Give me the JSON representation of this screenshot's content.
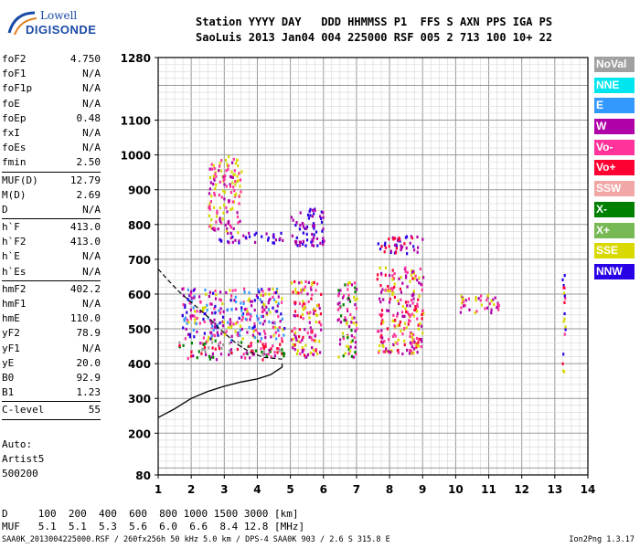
{
  "logo": {
    "line1": "Lowell",
    "line2": "DIGISONDE"
  },
  "header": {
    "line1": "Station YYYY DAY   DDD HHMMSS P1  FFS S AXN PPS IGA PS",
    "line2": "SaoLuis 2013 Jan04 004 225000 RSF 005 2 713 100 10+ 22"
  },
  "params": [
    {
      "label": "foF2",
      "value": "4.750"
    },
    {
      "label": "foF1",
      "value": "N/A"
    },
    {
      "label": "foF1p",
      "value": "N/A"
    },
    {
      "label": "foE",
      "value": "N/A"
    },
    {
      "label": "foEp",
      "value": "0.48"
    },
    {
      "label": "fxI",
      "value": "N/A"
    },
    {
      "label": "foEs",
      "value": "N/A"
    },
    {
      "label": "fmin",
      "value": "2.50",
      "sep": true
    },
    {
      "label": "MUF(D)",
      "value": "12.79"
    },
    {
      "label": "M(D)",
      "value": "2.69"
    },
    {
      "label": "D",
      "value": "N/A",
      "sep": true
    },
    {
      "label": "h`F",
      "value": "413.0"
    },
    {
      "label": "h`F2",
      "value": "413.0"
    },
    {
      "label": "h`E",
      "value": "N/A"
    },
    {
      "label": "h`Es",
      "value": "N/A",
      "sep": true
    },
    {
      "label": "hmF2",
      "value": "402.2"
    },
    {
      "label": "hmF1",
      "value": "N/A"
    },
    {
      "label": "hmE",
      "value": "110.0"
    },
    {
      "label": "yF2",
      "value": "78.9"
    },
    {
      "label": "yF1",
      "value": "N/A"
    },
    {
      "label": "yE",
      "value": "20.0"
    },
    {
      "label": "B0",
      "value": "92.9"
    },
    {
      "label": "B1",
      "value": "1.23",
      "sep": true
    },
    {
      "label": "C-level",
      "value": "55",
      "sep": true
    }
  ],
  "auto": {
    "line1": "Auto:",
    "line2": "Artist5",
    "line3": "500200"
  },
  "legend": [
    {
      "label": "NoVal",
      "color": "#a0a0a0"
    },
    {
      "label": "NNE",
      "color": "#00e5ee"
    },
    {
      "label": "E",
      "color": "#3399ff"
    },
    {
      "label": "W",
      "color": "#b000a8"
    },
    {
      "label": "Vo-",
      "color": "#ff3399"
    },
    {
      "label": "Vo+",
      "color": "#ff0033"
    },
    {
      "label": "SSW",
      "color": "#f2a7a7"
    },
    {
      "label": "X-",
      "color": "#008000"
    },
    {
      "label": "X+",
      "color": "#77b955"
    },
    {
      "label": "SSE",
      "color": "#d9d900"
    },
    {
      "label": "NNW",
      "color": "#2a00e6"
    }
  ],
  "dtable": {
    "line1": "D     100  200  400  600  800 1000 1500 3000 [km]",
    "line2": "MUF   5.1  5.1  5.3  5.6  6.0  6.6  8.4 12.8 [MHz]"
  },
  "footer": {
    "left": "SAA0K_2013004225000.RSF / 260fx256h 50 kHz 5.0 km / DPS-4 SAA0K 903 / 2.6 S 315.8 E",
    "right": "Ion2Png 1.3.17"
  },
  "chart_data": {
    "type": "scatter",
    "xlim": [
      1,
      14
    ],
    "ylim": [
      80,
      1280
    ],
    "x_ticks": [
      "1",
      "2",
      "3",
      "4",
      "5",
      "6",
      "7",
      "8",
      "9",
      "10",
      "11",
      "12",
      "13",
      "14"
    ],
    "y_ticks": [
      "80",
      "200",
      "300",
      "400",
      "500",
      "600",
      "700",
      "800",
      "900",
      "1000",
      "1100",
      "1280"
    ],
    "grid": true,
    "echo_clusters": [
      {
        "x": [
          1.6,
          4.8
        ],
        "y": [
          415,
          470
        ],
        "colors": [
          "#ff3399",
          "#b000a8",
          "#ff0033",
          "#008000",
          "#a0a0a0"
        ]
      },
      {
        "x": [
          1.7,
          4.8
        ],
        "y": [
          470,
          620
        ],
        "colors": [
          "#b000a8",
          "#2a00e6",
          "#ff3399",
          "#d9d900",
          "#3399ff"
        ]
      },
      {
        "x": [
          2.8,
          4.8
        ],
        "y": [
          750,
          780
        ],
        "colors": [
          "#2a00e6",
          "#b000a8"
        ]
      },
      {
        "x": [
          5.0,
          5.9
        ],
        "y": [
          420,
          640
        ],
        "colors": [
          "#d9d900",
          "#b000a8",
          "#ff3399",
          "#ff0033"
        ]
      },
      {
        "x": [
          6.4,
          7.0
        ],
        "y": [
          420,
          640
        ],
        "colors": [
          "#ff3399",
          "#b000a8",
          "#d9d900",
          "#008000"
        ]
      },
      {
        "x": [
          7.6,
          9.0
        ],
        "y": [
          430,
          680
        ],
        "colors": [
          "#d9d900",
          "#ff0033",
          "#b000a8",
          "#ff3399"
        ]
      },
      {
        "x": [
          5.0,
          6.0
        ],
        "y": [
          740,
          850
        ],
        "colors": [
          "#2a00e6",
          "#b000a8"
        ]
      },
      {
        "x": [
          7.6,
          9.0
        ],
        "y": [
          720,
          770
        ],
        "colors": [
          "#2a00e6",
          "#b000a8",
          "#ff0033"
        ]
      },
      {
        "x": [
          2.5,
          3.5
        ],
        "y": [
          780,
          1000
        ],
        "colors": [
          "#d9d900",
          "#b000a8",
          "#ff3399"
        ]
      },
      {
        "x": [
          10.0,
          11.3
        ],
        "y": [
          550,
          600
        ],
        "colors": [
          "#d9d900",
          "#b000a8",
          "#ff3399"
        ]
      },
      {
        "x": [
          13.2,
          13.3
        ],
        "y": [
          380,
          700
        ],
        "colors": [
          "#2a00e6",
          "#ff0033",
          "#ff3399",
          "#d9d900"
        ]
      }
    ],
    "profile_solid": [
      [
        1,
        245
      ],
      [
        1.5,
        270
      ],
      [
        2,
        300
      ],
      [
        2.5,
        320
      ],
      [
        3,
        335
      ],
      [
        3.5,
        347
      ],
      [
        4,
        356
      ],
      [
        4.4,
        368
      ],
      [
        4.75,
        390
      ],
      [
        4.75,
        400
      ]
    ],
    "profile_dashed": [
      [
        1,
        672
      ],
      [
        1.3,
        640
      ],
      [
        1.6,
        610
      ],
      [
        1.9,
        585
      ],
      [
        2.2,
        560
      ],
      [
        2.5,
        535
      ],
      [
        2.8,
        505
      ],
      [
        3.1,
        480
      ],
      [
        3.4,
        455
      ],
      [
        3.8,
        432
      ],
      [
        4.2,
        418
      ],
      [
        4.75,
        413
      ]
    ]
  }
}
